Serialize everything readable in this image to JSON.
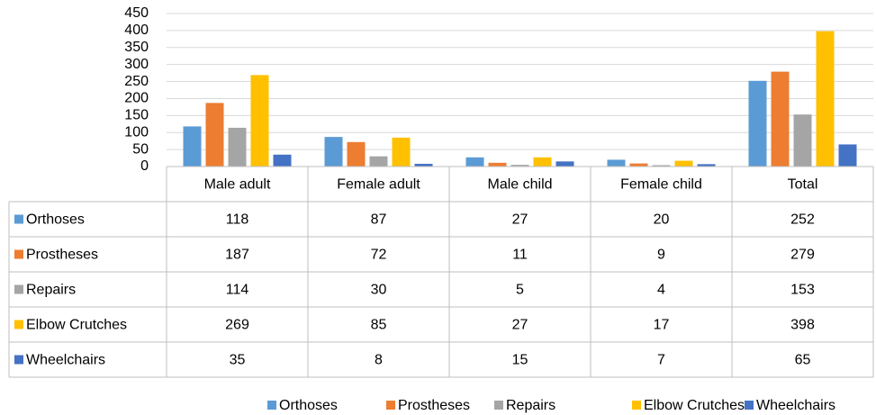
{
  "chart_data": {
    "type": "bar",
    "categories": [
      "Male adult",
      "Female adult",
      "Male child",
      "Female child",
      "Total"
    ],
    "series": [
      {
        "name": "Orthoses",
        "color": "#5b9bd5",
        "values": [
          118,
          87,
          27,
          20,
          252
        ]
      },
      {
        "name": "Prostheses",
        "color": "#ed7d31",
        "values": [
          187,
          72,
          11,
          9,
          279
        ]
      },
      {
        "name": "Repairs",
        "color": "#a5a5a5",
        "values": [
          114,
          30,
          5,
          4,
          153
        ]
      },
      {
        "name": "Elbow Crutches",
        "color": "#ffc000",
        "values": [
          269,
          85,
          27,
          17,
          398
        ]
      },
      {
        "name": "Wheelchairs",
        "color": "#4472c4",
        "values": [
          35,
          8,
          15,
          7,
          65
        ]
      }
    ],
    "ylim": [
      0,
      450
    ],
    "yticks": [
      0,
      50,
      100,
      150,
      200,
      250,
      300,
      350,
      400,
      450
    ],
    "grid": true,
    "legend": "bottom",
    "data_table": true
  }
}
